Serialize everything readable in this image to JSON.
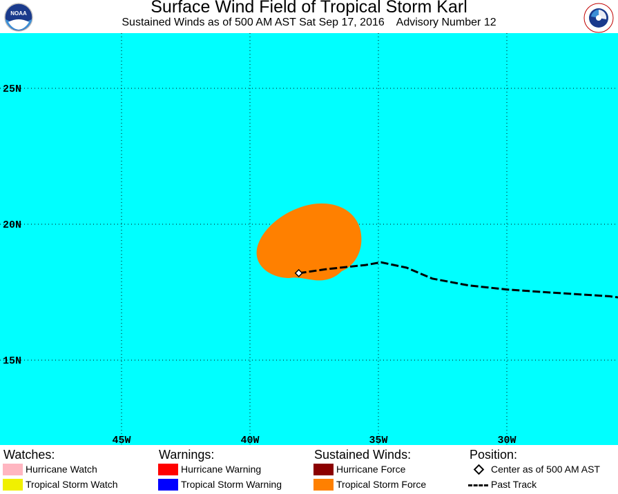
{
  "header": {
    "title": "Surface Wind Field of Tropical Storm Karl",
    "subtitle": "Sustained Winds as of 500 AM AST Sat Sep 17, 2016    Advisory Number 12",
    "left_logo_text": "NOAA",
    "right_logo_text": "NATIONAL WEATHER SERVICE"
  },
  "map": {
    "ocean_color": "#00ffff",
    "grid_color": "#000000",
    "lon_labels": [
      "45W",
      "40W",
      "35W",
      "30W"
    ],
    "lat_labels": [
      "25N",
      "20N",
      "15N"
    ],
    "lon_values": [
      -45,
      -40,
      -35,
      -30
    ],
    "lat_values": [
      25,
      20,
      15
    ],
    "wind_field_color": "#ff8000",
    "storm_center": {
      "lon": -38.1,
      "lat": 18.2
    },
    "past_track": [
      {
        "lon": -38.1,
        "lat": 18.2
      },
      {
        "lon": -37.0,
        "lat": 18.35
      },
      {
        "lon": -35.5,
        "lat": 18.5
      },
      {
        "lon": -34.9,
        "lat": 18.6
      },
      {
        "lon": -33.9,
        "lat": 18.4
      },
      {
        "lon": -32.9,
        "lat": 18.0
      },
      {
        "lon": -31.5,
        "lat": 17.75
      },
      {
        "lon": -30.0,
        "lat": 17.6
      },
      {
        "lon": -28.5,
        "lat": 17.5
      },
      {
        "lon": -26.0,
        "lat": 17.35
      },
      {
        "lon": -25.6,
        "lat": 17.3
      }
    ]
  },
  "legend": {
    "watches": {
      "heading": "Watches:",
      "items": [
        {
          "label": "Hurricane Watch",
          "color": "#ffb6c1"
        },
        {
          "label": "Tropical Storm Watch",
          "color": "#f0f000"
        }
      ]
    },
    "warnings": {
      "heading": "Warnings:",
      "items": [
        {
          "label": "Hurricane Warning",
          "color": "#ff0000"
        },
        {
          "label": "Tropical Storm Warning",
          "color": "#0000ff"
        }
      ]
    },
    "winds": {
      "heading": "Sustained Winds:",
      "items": [
        {
          "label": "Hurricane Force",
          "color": "#8b0000"
        },
        {
          "label": "Tropical Storm Force",
          "color": "#ff8000"
        }
      ]
    },
    "position": {
      "heading": "Position:",
      "center_label": "Center as of 500 AM AST",
      "track_label": "Past Track"
    }
  }
}
